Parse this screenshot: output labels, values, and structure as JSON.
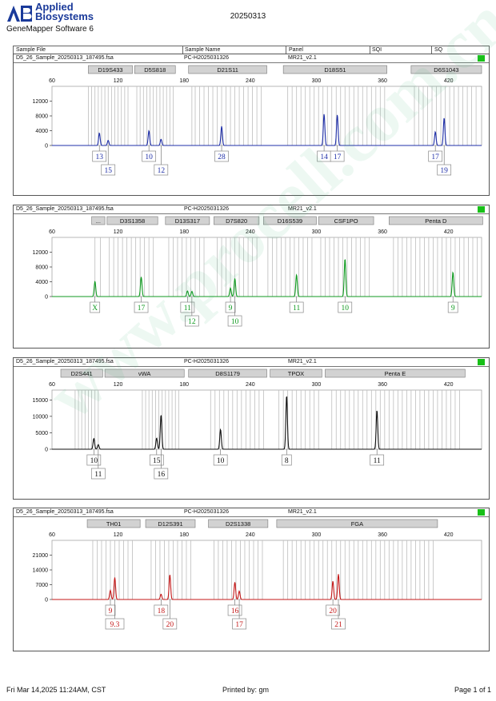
{
  "header": {
    "brand_line1": "Applied",
    "brand_line2": "Biosystems",
    "software": "GeneMapper Software 6",
    "run_date": "20250313",
    "columns": [
      "Sample File",
      "Sample Name",
      "Panel",
      "SQI",
      "SQ"
    ]
  },
  "panels": [
    {
      "sample_file": "D5_26_Sample_20250313_187495.fsa",
      "sample_name": "PC-H2025031326",
      "panel": "MR21_v2.1",
      "trace_color": "#1f2fa8",
      "markers": [
        {
          "name": "D19S433",
          "start": 93,
          "end": 133
        },
        {
          "name": "D5S818",
          "start": 135,
          "end": 172
        },
        {
          "name": "D21S11",
          "start": 184,
          "end": 255
        },
        {
          "name": "D18S51",
          "start": 270,
          "end": 364
        },
        {
          "name": "D6S1043",
          "start": 386,
          "end": 450
        }
      ],
      "x_range": [
        60,
        450
      ],
      "x_ticks": [
        60,
        120,
        180,
        240,
        300,
        360,
        420
      ],
      "y_max": 16000,
      "y_ticks": [
        0,
        4000,
        8000,
        12000
      ],
      "bins": [
        93,
        96,
        99,
        102,
        105,
        108,
        111,
        114,
        117,
        120,
        123,
        126,
        129,
        137,
        140,
        143,
        146,
        149,
        152,
        155,
        158,
        161,
        164,
        167,
        170,
        187,
        190,
        194,
        198,
        202,
        206,
        210,
        214,
        218,
        222,
        226,
        230,
        234,
        238,
        242,
        246,
        250,
        274,
        278,
        282,
        286,
        290,
        294,
        298,
        302,
        306,
        310,
        314,
        318,
        322,
        326,
        330,
        334,
        338,
        342,
        346,
        350,
        354,
        358,
        362,
        389,
        393,
        397,
        401,
        405,
        409,
        413,
        417,
        421,
        425,
        429,
        433,
        437,
        441,
        445
      ],
      "peaks": [
        {
          "x": 103,
          "height": 3400,
          "allele": "13",
          "row": 1
        },
        {
          "x": 111,
          "height": 1400,
          "allele": "15",
          "row": 2
        },
        {
          "x": 148,
          "height": 4000,
          "allele": "10",
          "row": 1
        },
        {
          "x": 159,
          "height": 1700,
          "allele": "12",
          "row": 2
        },
        {
          "x": 214,
          "height": 5200,
          "allele": "28",
          "row": 1
        },
        {
          "x": 307,
          "height": 8500,
          "allele": "14",
          "row": 1
        },
        {
          "x": 319,
          "height": 8300,
          "allele": "17",
          "row": 1
        },
        {
          "x": 408,
          "height": 3700,
          "allele": "17",
          "row": 1
        },
        {
          "x": 416,
          "height": 7500,
          "allele": "19",
          "row": 2
        }
      ]
    },
    {
      "sample_file": "D5_26_Sample_20250313_187495.fsa",
      "sample_name": "PC-H2025031326",
      "panel": "MR21_v2.1",
      "trace_color": "#109a20",
      "markers": [
        {
          "name": "...",
          "start": 96,
          "end": 108
        },
        {
          "name": "D3S1358",
          "start": 110,
          "end": 156
        },
        {
          "name": "D13S317",
          "start": 163,
          "end": 203
        },
        {
          "name": "D7S820",
          "start": 207,
          "end": 248
        },
        {
          "name": "D16S539",
          "start": 252,
          "end": 300
        },
        {
          "name": "CSF1PO",
          "start": 302,
          "end": 352
        },
        {
          "name": "Penta D",
          "start": 366,
          "end": 451
        }
      ],
      "x_range": [
        60,
        450
      ],
      "x_ticks": [
        60,
        120,
        180,
        240,
        300,
        360,
        420
      ],
      "y_max": 16000,
      "y_ticks": [
        0,
        4000,
        8000,
        12000
      ],
      "bins": [
        99,
        104,
        112,
        116,
        120,
        124,
        128,
        132,
        136,
        140,
        144,
        148,
        152,
        166,
        170,
        174,
        178,
        182,
        186,
        190,
        194,
        198,
        210,
        214,
        218,
        222,
        226,
        230,
        234,
        238,
        242,
        246,
        256,
        260,
        264,
        268,
        272,
        276,
        280,
        284,
        288,
        292,
        296,
        304,
        308,
        312,
        316,
        320,
        324,
        328,
        332,
        336,
        340,
        344,
        348,
        370,
        374,
        378,
        382,
        386,
        390,
        394,
        398,
        402,
        406,
        410,
        414,
        418,
        422,
        426,
        430,
        434,
        438,
        442,
        446
      ],
      "peaks": [
        {
          "x": 99,
          "height": 4100,
          "allele": "X",
          "row": 1
        },
        {
          "x": 141,
          "height": 5300,
          "allele": "17",
          "row": 1
        },
        {
          "x": 183,
          "height": 1500,
          "allele": "11",
          "row": 1
        },
        {
          "x": 187,
          "height": 1400,
          "allele": "12",
          "row": 2
        },
        {
          "x": 222,
          "height": 2300,
          "allele": "9",
          "row": 1
        },
        {
          "x": 226,
          "height": 4900,
          "allele": "10",
          "row": 2
        },
        {
          "x": 282,
          "height": 5900,
          "allele": "11",
          "row": 1
        },
        {
          "x": 326,
          "height": 10200,
          "allele": "10",
          "row": 1
        },
        {
          "x": 424,
          "height": 6600,
          "allele": "9",
          "row": 1
        }
      ]
    },
    {
      "sample_file": "D5_26_Sample_20250313_187495.fsa",
      "sample_name": "PC-H2025031326",
      "panel": "MR21_v2.1",
      "trace_color": "#111111",
      "markers": [
        {
          "name": "D2S441",
          "start": 68,
          "end": 106
        },
        {
          "name": "vWA",
          "start": 108,
          "end": 180
        },
        {
          "name": "D8S1179",
          "start": 184,
          "end": 255
        },
        {
          "name": "TPOX",
          "start": 258,
          "end": 305
        },
        {
          "name": "Penta E",
          "start": 308,
          "end": 435
        }
      ],
      "x_range": [
        60,
        450
      ],
      "x_ticks": [
        60,
        120,
        180,
        240,
        300,
        360,
        420
      ],
      "y_max": 18000,
      "y_ticks": [
        0,
        5000,
        10000,
        15000
      ],
      "bins": [
        81,
        84,
        87,
        90,
        93,
        96,
        99,
        102,
        142,
        145,
        148,
        151,
        154,
        157,
        160,
        163,
        166,
        169,
        172,
        175,
        204,
        208,
        212,
        216,
        220,
        224,
        228,
        232,
        236,
        240,
        244,
        248,
        252,
        266,
        270,
        274,
        278,
        282,
        286,
        290,
        294,
        298,
        302,
        314,
        318,
        322,
        326,
        330,
        334,
        338,
        342,
        346,
        350,
        354,
        358,
        362,
        366,
        370,
        374,
        378,
        382,
        386,
        390,
        394,
        398,
        402,
        406,
        410,
        414,
        418,
        422,
        426,
        430
      ],
      "peaks": [
        {
          "x": 98,
          "height": 3300,
          "allele": "10",
          "row": 1
        },
        {
          "x": 102,
          "height": 1400,
          "allele": "11",
          "row": 2
        },
        {
          "x": 155,
          "height": 3400,
          "allele": "15",
          "row": 1
        },
        {
          "x": 159,
          "height": 10500,
          "allele": "16",
          "row": 2
        },
        {
          "x": 213,
          "height": 6000,
          "allele": "10",
          "row": 1
        },
        {
          "x": 273,
          "height": 16400,
          "allele": "8",
          "row": 1
        },
        {
          "x": 355,
          "height": 11900,
          "allele": "11",
          "row": 1
        }
      ]
    },
    {
      "sample_file": "D5_26_Sample_20250313_187495.fsa",
      "sample_name": "PC-H2025031326",
      "panel": "MR21_v2.1",
      "trace_color": "#c41818",
      "markers": [
        {
          "name": "TH01",
          "start": 92,
          "end": 140
        },
        {
          "name": "D12S391",
          "start": 145,
          "end": 190
        },
        {
          "name": "D2S1338",
          "start": 202,
          "end": 256
        },
        {
          "name": "FGA",
          "start": 264,
          "end": 410
        }
      ],
      "x_range": [
        60,
        450
      ],
      "x_ticks": [
        60,
        120,
        180,
        240,
        300,
        360,
        420
      ],
      "y_max": 28000,
      "y_ticks": [
        0,
        7000,
        14000,
        21000
      ],
      "bins": [
        97,
        101,
        105,
        109,
        113,
        117,
        121,
        125,
        129,
        133,
        150,
        154,
        158,
        162,
        166,
        170,
        174,
        178,
        182,
        186,
        207,
        211,
        215,
        219,
        223,
        227,
        231,
        235,
        239,
        243,
        247,
        251,
        270,
        274,
        278,
        282,
        286,
        290,
        294,
        298,
        302,
        306,
        310,
        314,
        318,
        322,
        326,
        330,
        334,
        338,
        342,
        346,
        350,
        354,
        358,
        362,
        366,
        370,
        374,
        378,
        382,
        386,
        390,
        394,
        398,
        402,
        406
      ],
      "peaks": [
        {
          "x": 113,
          "height": 4300,
          "allele": "9",
          "row": 1
        },
        {
          "x": 117,
          "height": 10400,
          "allele": "9.3",
          "row": 2
        },
        {
          "x": 159,
          "height": 2500,
          "allele": "18",
          "row": 1
        },
        {
          "x": 167,
          "height": 11800,
          "allele": "20",
          "row": 2
        },
        {
          "x": 226,
          "height": 8200,
          "allele": "16",
          "row": 1
        },
        {
          "x": 230,
          "height": 4000,
          "allele": "17",
          "row": 2
        },
        {
          "x": 315,
          "height": 8700,
          "allele": "20",
          "row": 1
        },
        {
          "x": 320,
          "height": 12000,
          "allele": "21",
          "row": 2
        }
      ]
    }
  ],
  "footer": {
    "printed_time": "Fri Mar 14,2025 11:24AM, CST",
    "printed_by": "Printed by: gm",
    "page": "Page 1 of 1"
  },
  "watermark": "www.procell.com.cn",
  "chart_data": [
    {
      "type": "line",
      "title": "",
      "xlabel": "",
      "ylabel": "",
      "xlim": [
        60,
        450
      ],
      "ylim": [
        0,
        16000
      ],
      "series": [
        {
          "name": "D19S433",
          "values": [
            {
              "x": 103,
              "y": 3400,
              "allele": "13"
            },
            {
              "x": 111,
              "y": 1400,
              "allele": "15"
            }
          ]
        },
        {
          "name": "D5S818",
          "values": [
            {
              "x": 148,
              "y": 4000,
              "allele": "10"
            },
            {
              "x": 159,
              "y": 1700,
              "allele": "12"
            }
          ]
        },
        {
          "name": "D21S11",
          "values": [
            {
              "x": 214,
              "y": 5200,
              "allele": "28"
            }
          ]
        },
        {
          "name": "D18S51",
          "values": [
            {
              "x": 307,
              "y": 8500,
              "allele": "14"
            },
            {
              "x": 319,
              "y": 8300,
              "allele": "17"
            }
          ]
        },
        {
          "name": "D6S1043",
          "values": [
            {
              "x": 408,
              "y": 3700,
              "allele": "17"
            },
            {
              "x": 416,
              "y": 7500,
              "allele": "19"
            }
          ]
        }
      ]
    },
    {
      "type": "line",
      "title": "",
      "xlabel": "",
      "ylabel": "",
      "xlim": [
        60,
        450
      ],
      "ylim": [
        0,
        16000
      ],
      "series": [
        {
          "name": "...",
          "values": [
            {
              "x": 99,
              "y": 4100,
              "allele": "X"
            }
          ]
        },
        {
          "name": "D3S1358",
          "values": [
            {
              "x": 141,
              "y": 5300,
              "allele": "17"
            }
          ]
        },
        {
          "name": "D13S317",
          "values": [
            {
              "x": 183,
              "y": 1500,
              "allele": "11"
            },
            {
              "x": 187,
              "y": 1400,
              "allele": "12"
            }
          ]
        },
        {
          "name": "D7S820",
          "values": [
            {
              "x": 222,
              "y": 2300,
              "allele": "9"
            },
            {
              "x": 226,
              "y": 4900,
              "allele": "10"
            }
          ]
        },
        {
          "name": "D16S539",
          "values": [
            {
              "x": 282,
              "y": 5900,
              "allele": "11"
            }
          ]
        },
        {
          "name": "CSF1PO",
          "values": [
            {
              "x": 326,
              "y": 10200,
              "allele": "10"
            }
          ]
        },
        {
          "name": "Penta D",
          "values": [
            {
              "x": 424,
              "y": 6600,
              "allele": "9"
            }
          ]
        }
      ]
    },
    {
      "type": "line",
      "title": "",
      "xlabel": "",
      "ylabel": "",
      "xlim": [
        60,
        450
      ],
      "ylim": [
        0,
        18000
      ],
      "series": [
        {
          "name": "D2S441",
          "values": [
            {
              "x": 98,
              "y": 3300,
              "allele": "10"
            },
            {
              "x": 102,
              "y": 1400,
              "allele": "11"
            }
          ]
        },
        {
          "name": "vWA",
          "values": [
            {
              "x": 155,
              "y": 3400,
              "allele": "15"
            },
            {
              "x": 159,
              "y": 10500,
              "allele": "16"
            }
          ]
        },
        {
          "name": "D8S1179",
          "values": [
            {
              "x": 213,
              "y": 6000,
              "allele": "10"
            }
          ]
        },
        {
          "name": "TPOX",
          "values": [
            {
              "x": 273,
              "y": 16400,
              "allele": "8"
            }
          ]
        },
        {
          "name": "Penta E",
          "values": [
            {
              "x": 355,
              "y": 11900,
              "allele": "11"
            }
          ]
        }
      ]
    },
    {
      "type": "line",
      "title": "",
      "xlabel": "",
      "ylabel": "",
      "xlim": [
        60,
        450
      ],
      "ylim": [
        0,
        28000
      ],
      "series": [
        {
          "name": "TH01",
          "values": [
            {
              "x": 113,
              "y": 4300,
              "allele": "9"
            },
            {
              "x": 117,
              "y": 10400,
              "allele": "9.3"
            }
          ]
        },
        {
          "name": "D12S391",
          "values": [
            {
              "x": 159,
              "y": 2500,
              "allele": "18"
            },
            {
              "x": 167,
              "y": 11800,
              "allele": "20"
            }
          ]
        },
        {
          "name": "D2S1338",
          "values": [
            {
              "x": 226,
              "y": 8200,
              "allele": "16"
            },
            {
              "x": 230,
              "y": 4000,
              "allele": "17"
            }
          ]
        },
        {
          "name": "FGA",
          "values": [
            {
              "x": 315,
              "y": 8700,
              "allele": "20"
            },
            {
              "x": 320,
              "y": 12000,
              "allele": "21"
            }
          ]
        }
      ]
    }
  ]
}
